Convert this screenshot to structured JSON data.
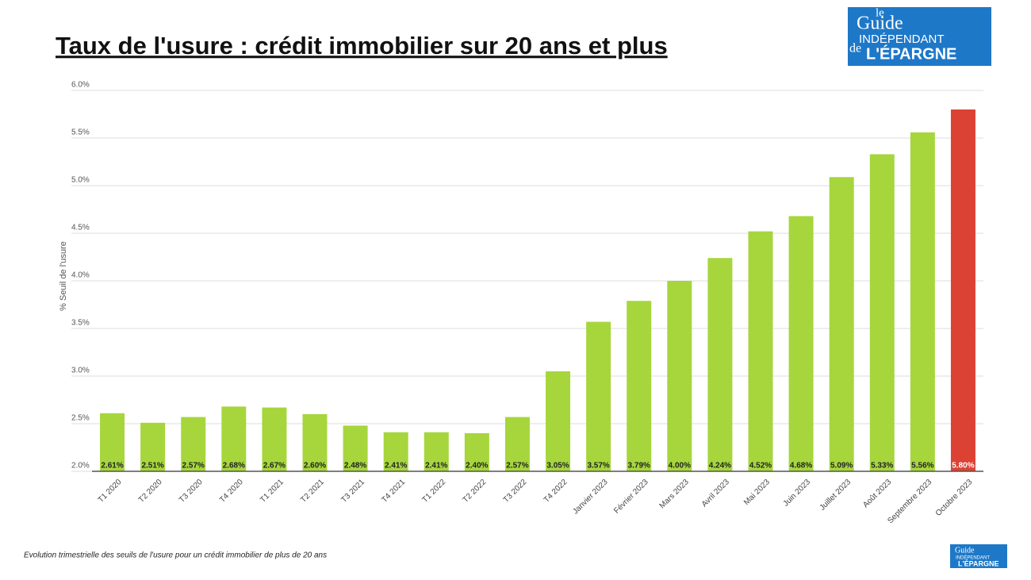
{
  "chart_data": {
    "type": "bar",
    "title": "Taux de l'usure : crédit immobilier sur 20 ans et plus",
    "y_label": "% Seuil de l'usure",
    "caption": "Evolution trimestrielle des seuils de l'usure pour un crédit immobilier de plus de 20 ans",
    "logo": {
      "line1": "le",
      "line2": "Guide",
      "line3": "INDÉPENDANT",
      "line4": "de",
      "line5": "L'ÉPARGNE"
    },
    "categories": [
      "T1 2020",
      "T2 2020",
      "T3 2020",
      "T4 2020",
      "T1 2021",
      "T2 2021",
      "T3 2021",
      "T4 2021",
      "T1 2022",
      "T2 2022",
      "T3 2022",
      "T4 2022",
      "Janvier 2023",
      "Février 2023",
      "Mars 2023",
      "Avril 2023",
      "Mai 2023",
      "Juin 2023",
      "Juillet 2023",
      "Août 2023",
      "Septembre 2023",
      "Octobre 2023"
    ],
    "values": [
      2.61,
      2.51,
      2.57,
      2.68,
      2.67,
      2.6,
      2.48,
      2.41,
      2.41,
      2.4,
      2.57,
      3.05,
      3.57,
      3.79,
      4.0,
      4.24,
      4.52,
      4.68,
      5.09,
      5.33,
      5.56,
      5.8
    ],
    "value_labels": [
      "2.61%",
      "2.51%",
      "2.57%",
      "2.68%",
      "2.67%",
      "2.60%",
      "2.48%",
      "2.41%",
      "2.41%",
      "2.40%",
      "2.57%",
      "3.05%",
      "3.57%",
      "3.79%",
      "4.00%",
      "4.24%",
      "4.52%",
      "4.68%",
      "5.09%",
      "5.33%",
      "5.56%",
      "5.80%"
    ],
    "colors": [
      "#a6d63c",
      "#a6d63c",
      "#a6d63c",
      "#a6d63c",
      "#a6d63c",
      "#a6d63c",
      "#a6d63c",
      "#a6d63c",
      "#a6d63c",
      "#a6d63c",
      "#a6d63c",
      "#a6d63c",
      "#a6d63c",
      "#a6d63c",
      "#a6d63c",
      "#a6d63c",
      "#a6d63c",
      "#a6d63c",
      "#a6d63c",
      "#a6d63c",
      "#a6d63c",
      "#dc4234"
    ],
    "ylim": [
      2,
      6
    ],
    "yticks": [
      {
        "value": 2,
        "label": "2.0%"
      },
      {
        "value": 2.5,
        "label": "2.5%"
      },
      {
        "value": 3,
        "label": "3.0%"
      },
      {
        "value": 3.5,
        "label": "3.5%"
      },
      {
        "value": 4,
        "label": "4.0%"
      },
      {
        "value": 4.5,
        "label": "4.5%"
      },
      {
        "value": 5,
        "label": "5.0%"
      },
      {
        "value": 5.5,
        "label": "5.5%"
      },
      {
        "value": 6,
        "label": "6.0%"
      }
    ],
    "grid": true
  }
}
